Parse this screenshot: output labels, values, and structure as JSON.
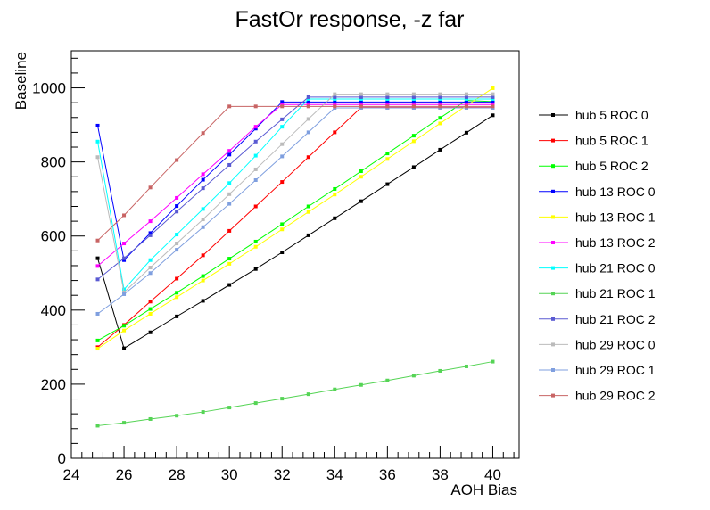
{
  "chart_data": {
    "type": "line",
    "title": "FastOr response, -z far",
    "xlabel": "AOH Bias",
    "ylabel": "Baseline",
    "xlim": [
      24,
      41
    ],
    "ylim": [
      0,
      1100
    ],
    "x_ticks": [
      24,
      26,
      28,
      30,
      32,
      34,
      36,
      38,
      40
    ],
    "y_ticks": [
      0,
      200,
      400,
      600,
      800,
      1000
    ],
    "legend_position": "right",
    "grid": false,
    "x": [
      25,
      26,
      27,
      28,
      29,
      30,
      31,
      32,
      33,
      34,
      35,
      36,
      37,
      38,
      39,
      40
    ],
    "series": [
      {
        "name": "hub 5 ROC 0",
        "color": "#000000",
        "values": [
          540,
          297,
          340,
          383,
          425,
          468,
          511,
          556,
          602,
          648,
          694,
          740,
          786,
          833,
          879,
          926
        ]
      },
      {
        "name": "hub 5 ROC 1",
        "color": "#ff0000",
        "values": [
          300,
          360,
          423,
          485,
          548,
          614,
          680,
          746,
          813,
          880,
          947,
          947,
          947,
          947,
          947,
          947
        ]
      },
      {
        "name": "hub 5 ROC 2",
        "color": "#00ff00",
        "values": [
          318,
          358,
          403,
          447,
          492,
          539,
          585,
          632,
          680,
          727,
          775,
          823,
          871,
          919,
          966,
          963
        ]
      },
      {
        "name": "hub 13 ROC 0",
        "color": "#0000ff",
        "values": [
          898,
          535,
          608,
          681,
          752,
          820,
          890,
          962,
          962,
          962,
          962,
          962,
          962,
          962,
          962,
          962
        ]
      },
      {
        "name": "hub 13 ROC 1",
        "color": "#ffff00",
        "values": [
          296,
          345,
          390,
          435,
          480,
          525,
          571,
          618,
          665,
          712,
          760,
          808,
          856,
          904,
          952,
          999
        ]
      },
      {
        "name": "hub 13 ROC 2",
        "color": "#ff00ff",
        "values": [
          519,
          580,
          640,
          703,
          767,
          830,
          895,
          955,
          955,
          955,
          955,
          955,
          955,
          955,
          955,
          955
        ]
      },
      {
        "name": "hub 21 ROC 0",
        "color": "#00ffff",
        "values": [
          855,
          456,
          535,
          604,
          673,
          743,
          817,
          895,
          970,
          970,
          970,
          970,
          970,
          970,
          970,
          970
        ]
      },
      {
        "name": "hub 21 ROC 1",
        "color": "#55d455",
        "values": [
          88,
          96,
          106,
          115,
          125,
          137,
          149,
          161,
          173,
          186,
          198,
          210,
          223,
          236,
          248,
          261
        ]
      },
      {
        "name": "hub 21 ROC 2",
        "color": "#5a5ad2",
        "values": [
          483,
          540,
          602,
          666,
          729,
          792,
          855,
          915,
          975,
          975,
          975,
          975,
          975,
          975,
          975,
          975
        ]
      },
      {
        "name": "hub 29 ROC 0",
        "color": "#bbbbbb",
        "values": [
          813,
          448,
          515,
          580,
          645,
          713,
          780,
          848,
          916,
          983,
          983,
          983,
          983,
          983,
          983,
          983
        ]
      },
      {
        "name": "hub 29 ROC 1",
        "color": "#7f9fdf",
        "values": [
          390,
          443,
          500,
          563,
          624,
          687,
          751,
          815,
          880,
          946,
          946,
          946,
          946,
          946,
          946,
          946
        ]
      },
      {
        "name": "hub 29 ROC 2",
        "color": "#c86464",
        "values": [
          588,
          656,
          731,
          805,
          878,
          950,
          950,
          950,
          950,
          950,
          950,
          950,
          950,
          950,
          950,
          950
        ]
      }
    ]
  }
}
